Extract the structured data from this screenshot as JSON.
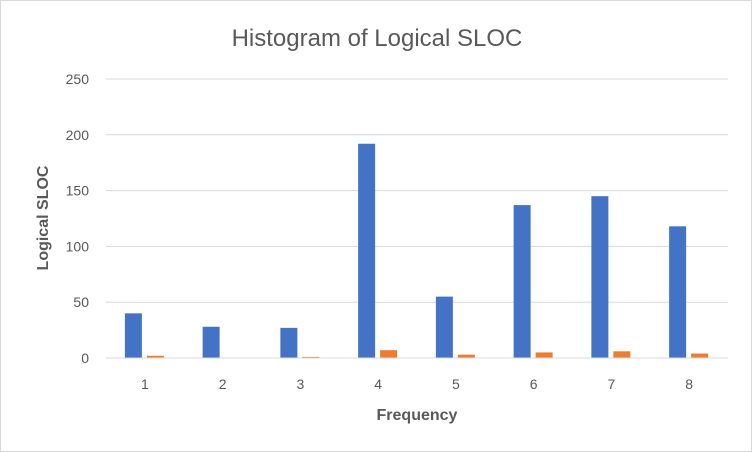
{
  "chart_data": {
    "type": "bar",
    "title": "Histogram of Logical SLOC",
    "xlabel": "Frequency",
    "ylabel": "Logical SLOC",
    "categories": [
      "1",
      "2",
      "3",
      "4",
      "5",
      "6",
      "7",
      "8"
    ],
    "series": [
      {
        "values": [
          40,
          28,
          27,
          192,
          55,
          137,
          145,
          118
        ],
        "color": "#4472C4"
      },
      {
        "values": [
          2,
          0,
          1,
          7,
          3,
          5,
          6,
          4
        ],
        "color": "#ED7D31"
      }
    ],
    "ylim": [
      0,
      250
    ],
    "yticks": [
      0,
      50,
      100,
      150,
      200,
      250
    ],
    "grid": true,
    "legend": "none"
  }
}
